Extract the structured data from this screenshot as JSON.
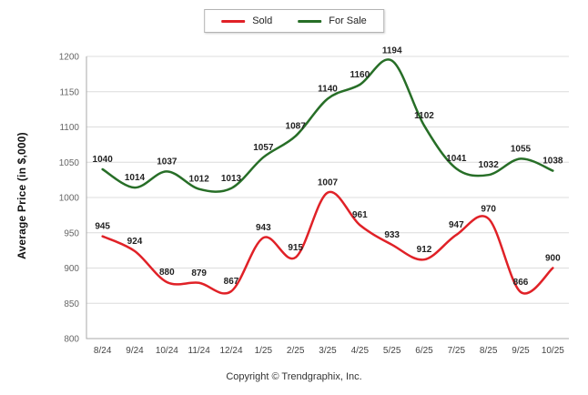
{
  "legend": {
    "items": [
      {
        "label": "Sold",
        "color": "#e02127"
      },
      {
        "label": "For Sale",
        "color": "#276e27"
      }
    ]
  },
  "footer": {
    "copyright": "Copyright © Trendgraphix, Inc."
  },
  "chart_data": {
    "type": "line",
    "title": "",
    "xlabel": "",
    "ylabel": "Average Price (in $,000)",
    "categories": [
      "8/24",
      "9/24",
      "10/24",
      "11/24",
      "12/24",
      "1/25",
      "2/25",
      "3/25",
      "4/25",
      "5/25",
      "6/25",
      "7/25",
      "8/25",
      "9/25",
      "10/25"
    ],
    "series": [
      {
        "name": "Sold",
        "color": "#e02127",
        "values": [
          945,
          924,
          880,
          879,
          867,
          943,
          915,
          1007,
          961,
          933,
          912,
          947,
          970,
          866,
          900
        ]
      },
      {
        "name": "For Sale",
        "color": "#276e27",
        "values": [
          1040,
          1014,
          1037,
          1012,
          1013,
          1057,
          1087,
          1140,
          1160,
          1194,
          1102,
          1041,
          1032,
          1055,
          1038
        ]
      }
    ],
    "ylim": [
      800,
      1200
    ],
    "yticks": [
      800,
      850,
      900,
      950,
      1000,
      1050,
      1100,
      1150,
      1200
    ],
    "grid": true,
    "smooth": true,
    "legend_position": "top",
    "data_labels": true
  }
}
